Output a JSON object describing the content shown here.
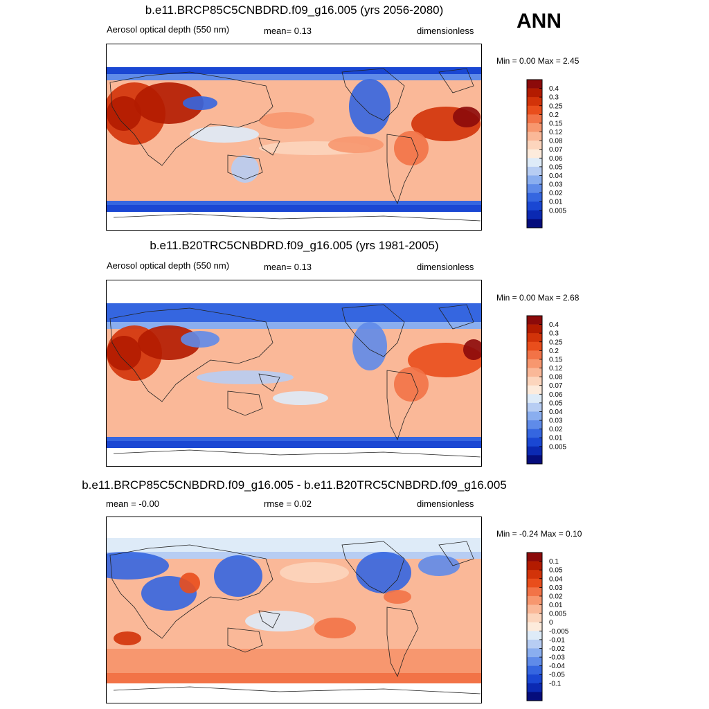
{
  "season": "ANN",
  "panels": [
    {
      "title": "b.e11.BRCP85C5CNBDRD.f09_g16.005 (yrs 2056-2080)",
      "left_label": "Aerosol optical depth (550 nm)",
      "center_label": "mean=   0.13",
      "right_label": "dimensionless",
      "minmax": "Min =    0.00 Max =    2.45"
    },
    {
      "title": "b.e11.B20TRC5CNBDRD.f09_g16.005 (yrs 1981-2005)",
      "left_label": "Aerosol optical depth (550 nm)",
      "center_label": "mean=   0.13",
      "right_label": "dimensionless",
      "minmax": "Min =    0.00 Max =    2.68"
    },
    {
      "title": "b.e11.BRCP85C5CNBDRD.f09_g16.005 - b.e11.B20TRC5CNBDRD.f09_g16.005",
      "left_label": "mean =  -0.00",
      "center_label": "rmse =   0.02",
      "right_label": "dimensionless",
      "minmax": "Min =  -0.24 Max =    0.10"
    }
  ],
  "chart_data": [
    {
      "type": "heatmap",
      "title": "b.e11.BRCP85C5CNBDRD.f09_g16.005 (yrs 2056-2080)",
      "variable": "Aerosol optical depth (550 nm)",
      "units": "dimensionless",
      "mean": 0.13,
      "min": 0.0,
      "max": 2.45,
      "colorbar_levels": [
        "0.4",
        "0.3",
        "0.25",
        "0.2",
        "0.15",
        "0.12",
        "0.08",
        "0.07",
        "0.06",
        "0.05",
        "0.04",
        "0.03",
        "0.02",
        "0.01",
        "0.005"
      ],
      "colors": [
        "#8c0a0a",
        "#b31b00",
        "#d23309",
        "#e94e1c",
        "#f27347",
        "#f7976f",
        "#fab898",
        "#fcd5bd",
        "#fdebdc",
        "#deebf8",
        "#b7cdf3",
        "#8aaeef",
        "#5f8be9",
        "#3566e0",
        "#1a47d3",
        "#0b29b2",
        "#050d7c"
      ]
    },
    {
      "type": "heatmap",
      "title": "b.e11.B20TRC5CNBDRD.f09_g16.005 (yrs 1981-2005)",
      "variable": "Aerosol optical depth (550 nm)",
      "units": "dimensionless",
      "mean": 0.13,
      "min": 0.0,
      "max": 2.68,
      "colorbar_levels": [
        "0.4",
        "0.3",
        "0.25",
        "0.2",
        "0.15",
        "0.12",
        "0.08",
        "0.07",
        "0.06",
        "0.05",
        "0.04",
        "0.03",
        "0.02",
        "0.01",
        "0.005"
      ],
      "colors": [
        "#8c0a0a",
        "#b31b00",
        "#d23309",
        "#e94e1c",
        "#f27347",
        "#f7976f",
        "#fab898",
        "#fcd5bd",
        "#fdebdc",
        "#deebf8",
        "#b7cdf3",
        "#8aaeef",
        "#5f8be9",
        "#3566e0",
        "#1a47d3",
        "#0b29b2",
        "#050d7c"
      ]
    },
    {
      "type": "heatmap",
      "title": "b.e11.BRCP85C5CNBDRD.f09_g16.005 - b.e11.B20TRC5CNBDRD.f09_g16.005",
      "units": "dimensionless",
      "mean": -0.0,
      "rmse": 0.02,
      "min": -0.24,
      "max": 0.1,
      "colorbar_levels": [
        "0.1",
        "0.05",
        "0.04",
        "0.03",
        "0.02",
        "0.01",
        "0.005",
        "0",
        "-0.005",
        "-0.01",
        "-0.02",
        "-0.03",
        "-0.04",
        "-0.05",
        "-0.1"
      ],
      "colors": [
        "#8c0a0a",
        "#b31b00",
        "#d23309",
        "#e94e1c",
        "#f27347",
        "#f7976f",
        "#fab898",
        "#fcd5bd",
        "#fdebdc",
        "#deebf8",
        "#b7cdf3",
        "#8aaeef",
        "#5f8be9",
        "#3566e0",
        "#1a47d3",
        "#0b29b2",
        "#050d7c"
      ]
    }
  ]
}
